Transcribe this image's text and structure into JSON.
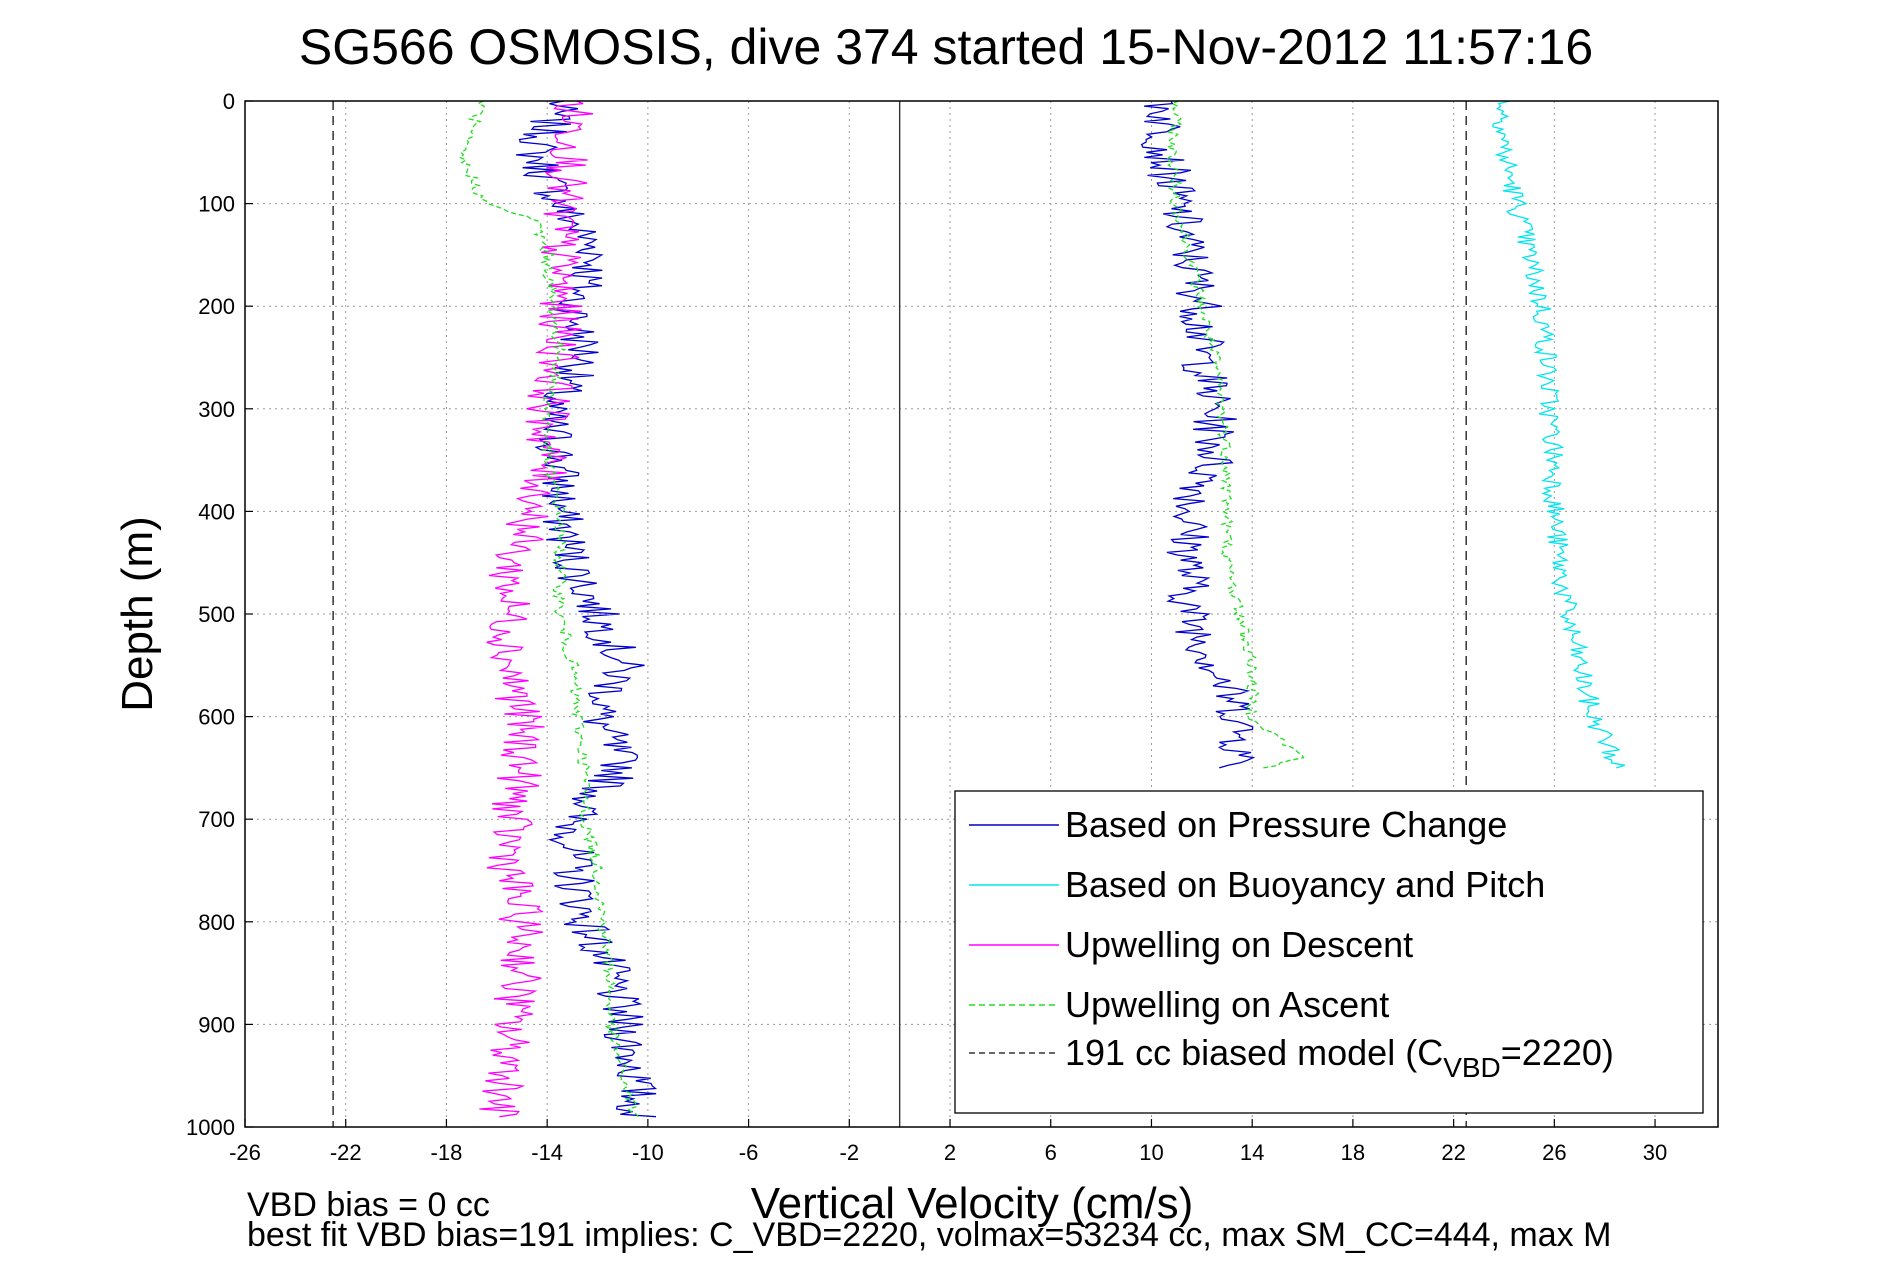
{
  "chart_data": {
    "type": "line",
    "title": "SG566 OSMOSIS, dive 374 started 15-Nov-2012 11:57:16",
    "xlabel": "Vertical Velocity (cm/s)",
    "ylabel": "Depth (m)",
    "xlim": [
      -26,
      32.5
    ],
    "ylim": [
      1000,
      0
    ],
    "y_reversed": true,
    "grid": true,
    "legend_position": "bottom-right",
    "x_ticks": [
      "-26",
      "-22",
      "-18",
      "-14",
      "-10",
      "-6",
      "-2",
      "2",
      "6",
      "10",
      "14",
      "18",
      "22",
      "26",
      "30"
    ],
    "y_ticks": [
      "0",
      "100",
      "200",
      "300",
      "400",
      "500",
      "600",
      "700",
      "800",
      "900",
      "1000"
    ],
    "x_tick_values": [
      -26,
      -22,
      -18,
      -14,
      -10,
      -6,
      -2,
      2,
      6,
      10,
      14,
      18,
      22,
      26,
      30
    ],
    "y_tick_values": [
      0,
      100,
      200,
      300,
      400,
      500,
      600,
      700,
      800,
      900,
      1000
    ],
    "zero_line_x": 0,
    "footnote_line1": "VBD bias = 0 cc",
    "footnote_line2": "best fit VBD bias=191 implies: C_VBD=2220, volmax=53234 cc, max SM_CC=444, max M",
    "legend": [
      {
        "label": "Based on Pressure Change",
        "color": "#0000cc",
        "dash": "solid"
      },
      {
        "label": "Based on Buoyancy and Pitch",
        "color": "#00e5ee",
        "dash": "solid"
      },
      {
        "label": "Upwelling on Descent",
        "color": "#ff00ff",
        "dash": "solid"
      },
      {
        "label": "Upwelling on Ascent",
        "color": "#22dd22",
        "dash": "dashed"
      },
      {
        "label": "191 cc biased model (C",
        "label_sub": "VBD",
        "label_end": "=2220)",
        "color": "#333333",
        "dash": "dashed"
      }
    ],
    "series": [
      {
        "name": "Based on Pressure Change",
        "color": "#0000cc",
        "style": "solid",
        "branch": "descent",
        "depths": [
          0,
          50,
          100,
          150,
          200,
          250,
          300,
          350,
          400,
          450,
          500,
          550,
          600,
          650,
          700,
          750,
          800,
          850,
          900,
          950,
          990
        ],
        "values": [
          -13.5,
          -14.5,
          -13.5,
          -12,
          -13,
          -12.5,
          -14,
          -13.5,
          -13.5,
          -13,
          -12,
          -11,
          -12,
          -11,
          -13,
          -13,
          -12.5,
          -11.5,
          -11,
          -10.5,
          -10.5
        ]
      },
      {
        "name": "Based on Pressure Change",
        "color": "#0000cc",
        "style": "solid",
        "branch": "ascent",
        "depths": [
          0,
          50,
          100,
          150,
          200,
          250,
          300,
          350,
          400,
          450,
          500,
          550,
          600,
          650
        ],
        "values": [
          10.5,
          10.5,
          11,
          11.5,
          12,
          12,
          12.5,
          12.5,
          11.5,
          11.5,
          11.5,
          12.5,
          13.5,
          13.5
        ]
      },
      {
        "name": "Based on Buoyancy and Pitch",
        "color": "#00e5ee",
        "style": "solid",
        "branch": "ascent",
        "depths": [
          0,
          50,
          100,
          150,
          200,
          250,
          300,
          350,
          400,
          450,
          500,
          550,
          600,
          620,
          650
        ],
        "values": [
          24,
          24,
          24.5,
          25,
          25.5,
          25.7,
          25.8,
          26,
          26,
          26.2,
          26.5,
          27,
          27.5,
          28,
          28.5
        ]
      },
      {
        "name": "Upwelling on Descent",
        "color": "#ff00ff",
        "style": "solid",
        "branch": "descent",
        "depths": [
          0,
          50,
          100,
          150,
          200,
          250,
          300,
          350,
          400,
          450,
          500,
          550,
          600,
          650,
          700,
          750,
          800,
          850,
          900,
          950,
          990
        ],
        "values": [
          -13,
          -13,
          -13.5,
          -13.5,
          -13.5,
          -13.5,
          -14,
          -14,
          -14.5,
          -15.5,
          -15.5,
          -15.5,
          -15,
          -15,
          -15.5,
          -15.5,
          -15,
          -15,
          -15.5,
          -15.5,
          -16
        ]
      },
      {
        "name": "Upwelling on Ascent",
        "color": "#22dd22",
        "style": "dashed",
        "branch": "descent",
        "depths": [
          0,
          50,
          100,
          115,
          150,
          200,
          250,
          300,
          350,
          400,
          450,
          500,
          550,
          600,
          650,
          700,
          750,
          800,
          850,
          900,
          950,
          990
        ],
        "values": [
          -16.5,
          -17.5,
          -16.5,
          -14.5,
          -14,
          -13.8,
          -13.5,
          -14,
          -14,
          -13.5,
          -13.5,
          -13.5,
          -13,
          -12.8,
          -12.5,
          -12.5,
          -12,
          -11.8,
          -11.5,
          -11.5,
          -11,
          -10.5
        ]
      },
      {
        "name": "Upwelling on Ascent",
        "color": "#22dd22",
        "style": "dashed",
        "branch": "ascent",
        "depths": [
          0,
          50,
          100,
          150,
          200,
          250,
          300,
          350,
          400,
          450,
          500,
          550,
          600,
          640,
          650
        ],
        "values": [
          11,
          10.8,
          11,
          11.5,
          12,
          12.5,
          12.8,
          13,
          13,
          13,
          13.5,
          14,
          14,
          16,
          14.5
        ]
      },
      {
        "name": "191 cc biased model",
        "color": "#333333",
        "style": "dashed",
        "depths": [
          0,
          1000
        ],
        "values_descent": [
          -22.5,
          -22.5
        ],
        "values_ascent": [
          22.5,
          22.5
        ]
      }
    ]
  }
}
